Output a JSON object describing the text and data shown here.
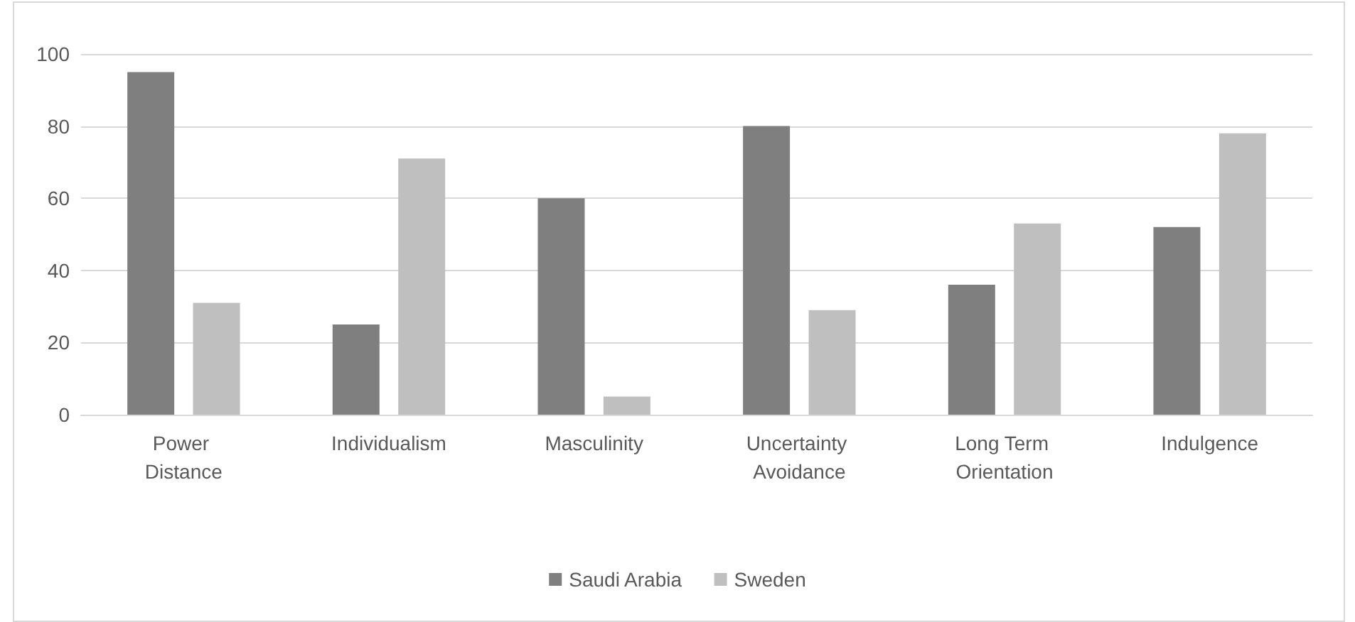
{
  "chart_data": {
    "type": "bar",
    "categories": [
      "Power Distance",
      "Individualism",
      "Masculinity",
      "Uncertainty Avoidance",
      "Long Term Orientation",
      "Indulgence"
    ],
    "series": [
      {
        "name": "Saudi Arabia",
        "color": "#7f7f7f",
        "values": [
          95,
          25,
          60,
          80,
          36,
          52
        ]
      },
      {
        "name": "Sweden",
        "color": "#bfbfbf",
        "values": [
          31,
          71,
          5,
          29,
          53,
          78
        ]
      }
    ],
    "ylim": [
      0,
      100
    ],
    "yticks": [
      0,
      20,
      40,
      60,
      80,
      100
    ],
    "grid": "y",
    "legend": "bottom"
  }
}
